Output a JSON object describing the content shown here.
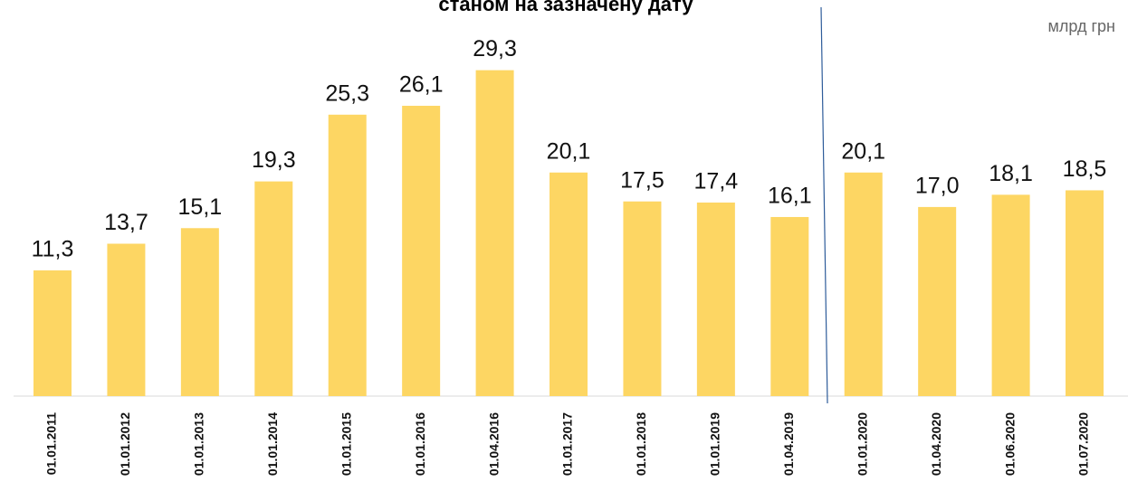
{
  "chart_data": {
    "type": "bar",
    "title": "станом на зазначену дату",
    "unit_label": "млрд грн",
    "categories": [
      "01.01.2011",
      "01.01.2012",
      "01.01.2013",
      "01.01.2014",
      "01.01.2015",
      "01.01.2016",
      "01.04.2016",
      "01.01.2017",
      "01.01.2018",
      "01.01.2019",
      "01.04.2019",
      "01.01.2020",
      "01.04.2020",
      "01.06.2020",
      "01.07.2020"
    ],
    "values": [
      11.3,
      13.7,
      15.1,
      19.3,
      25.3,
      26.1,
      29.3,
      20.1,
      17.5,
      17.4,
      16.1,
      20.1,
      17.0,
      18.1,
      18.5
    ],
    "value_labels": [
      "11,3",
      "13,7",
      "15,1",
      "19,3",
      "25,3",
      "26,1",
      "29,3",
      "20,1",
      "17,5",
      "17,4",
      "16,1",
      "20,1",
      "17,0",
      "18,1",
      "18,5"
    ],
    "color": "#fdd663",
    "ylim": [
      0,
      30
    ]
  }
}
